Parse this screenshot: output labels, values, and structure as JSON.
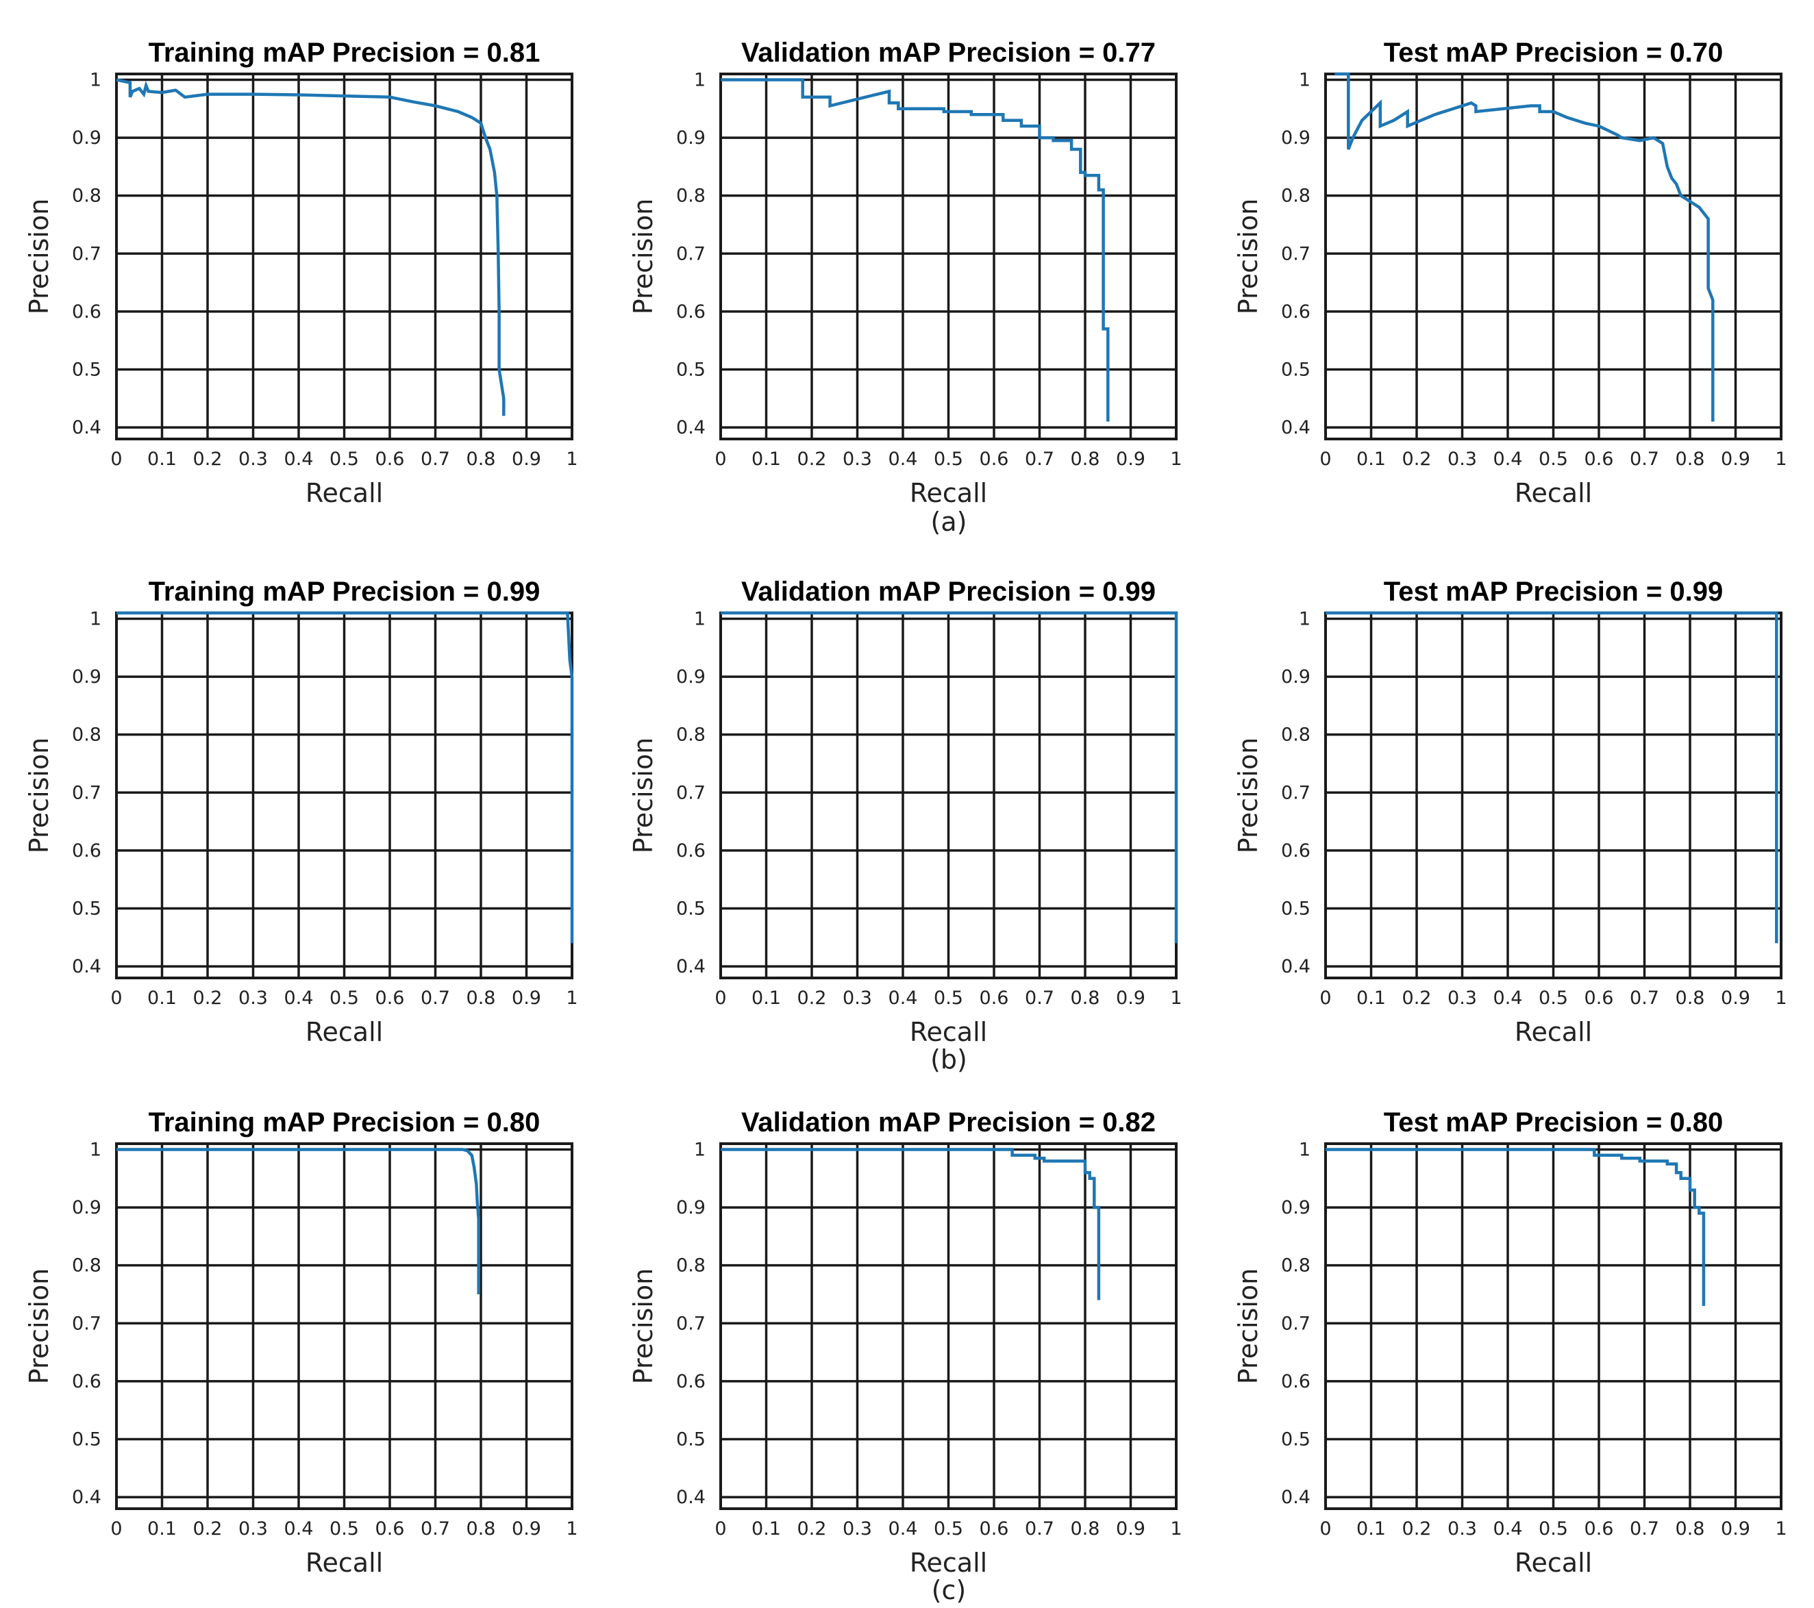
{
  "figure": {
    "captions": [
      "(a)",
      "(b)",
      "(c)"
    ]
  },
  "colors": {
    "curve": "#1f77b4",
    "grid": "#1a1a1a",
    "text": "#222222"
  },
  "chart_data": [
    {
      "type": "line",
      "row": 0,
      "col": 0,
      "title": "Training mAP Precision = 0.81",
      "xlabel": "Recall",
      "ylabel": "Precision",
      "xlim": [
        0,
        1
      ],
      "ylim": [
        0.38,
        1.01
      ],
      "xticks": [
        "0",
        "0.1",
        "0.2",
        "0.3",
        "0.4",
        "0.5",
        "0.6",
        "0.7",
        "0.8",
        "0.9",
        "1"
      ],
      "yticks": [
        "0.4",
        "0.5",
        "0.6",
        "0.7",
        "0.8",
        "0.9",
        "1"
      ],
      "series": [
        {
          "name": "PR curve",
          "x": [
            0,
            0.03,
            0.03,
            0.035,
            0.05,
            0.06,
            0.065,
            0.07,
            0.1,
            0.13,
            0.15,
            0.2,
            0.3,
            0.4,
            0.5,
            0.6,
            0.65,
            0.7,
            0.75,
            0.78,
            0.8,
            0.81,
            0.82,
            0.825,
            0.83,
            0.835,
            0.838,
            0.84,
            0.84,
            0.85,
            0.85
          ],
          "y": [
            1.0,
            0.995,
            0.97,
            0.98,
            0.985,
            0.975,
            0.99,
            0.98,
            0.978,
            0.982,
            0.97,
            0.975,
            0.975,
            0.974,
            0.972,
            0.97,
            0.962,
            0.955,
            0.945,
            0.935,
            0.925,
            0.9,
            0.88,
            0.86,
            0.84,
            0.8,
            0.7,
            0.6,
            0.5,
            0.45,
            0.42
          ]
        }
      ]
    },
    {
      "type": "line",
      "row": 0,
      "col": 1,
      "title": "Validation mAP Precision = 0.77",
      "xlabel": "Recall",
      "ylabel": "Precision",
      "xlim": [
        0,
        1
      ],
      "ylim": [
        0.38,
        1.01
      ],
      "xticks": [
        "0",
        "0.1",
        "0.2",
        "0.3",
        "0.4",
        "0.5",
        "0.6",
        "0.7",
        "0.8",
        "0.9",
        "1"
      ],
      "yticks": [
        "0.4",
        "0.5",
        "0.6",
        "0.7",
        "0.8",
        "0.9",
        "1"
      ],
      "series": [
        {
          "name": "PR curve",
          "x": [
            0,
            0.18,
            0.18,
            0.24,
            0.24,
            0.37,
            0.37,
            0.39,
            0.39,
            0.49,
            0.49,
            0.55,
            0.55,
            0.62,
            0.62,
            0.66,
            0.66,
            0.7,
            0.7,
            0.73,
            0.73,
            0.77,
            0.77,
            0.79,
            0.79,
            0.8,
            0.8,
            0.83,
            0.83,
            0.84,
            0.84,
            0.85,
            0.85
          ],
          "y": [
            1.0,
            1.0,
            0.97,
            0.97,
            0.955,
            0.98,
            0.96,
            0.96,
            0.95,
            0.95,
            0.945,
            0.945,
            0.94,
            0.94,
            0.93,
            0.93,
            0.92,
            0.92,
            0.9,
            0.9,
            0.895,
            0.895,
            0.88,
            0.88,
            0.84,
            0.84,
            0.835,
            0.835,
            0.81,
            0.81,
            0.57,
            0.57,
            0.41
          ]
        }
      ]
    },
    {
      "type": "line",
      "row": 0,
      "col": 2,
      "title": "Test mAP Precision = 0.70",
      "xlabel": "Recall",
      "ylabel": "Precision",
      "xlim": [
        0,
        1
      ],
      "ylim": [
        0.38,
        1.01
      ],
      "xticks": [
        "0",
        "0.1",
        "0.2",
        "0.3",
        "0.4",
        "0.5",
        "0.6",
        "0.7",
        "0.8",
        "0.9",
        "1"
      ],
      "yticks": [
        "0.4",
        "0.5",
        "0.6",
        "0.7",
        "0.8",
        "0.9",
        "1"
      ],
      "series": [
        {
          "name": "PR curve",
          "x": [
            0.02,
            0.05,
            0.05,
            0.06,
            0.08,
            0.12,
            0.12,
            0.15,
            0.18,
            0.18,
            0.24,
            0.32,
            0.33,
            0.33,
            0.45,
            0.47,
            0.47,
            0.5,
            0.53,
            0.57,
            0.6,
            0.64,
            0.65,
            0.69,
            0.72,
            0.74,
            0.75,
            0.76,
            0.77,
            0.78,
            0.79,
            0.8,
            0.82,
            0.83,
            0.84,
            0.84,
            0.85,
            0.85
          ],
          "y": [
            1.01,
            1.01,
            0.88,
            0.9,
            0.93,
            0.96,
            0.92,
            0.93,
            0.945,
            0.92,
            0.94,
            0.96,
            0.955,
            0.945,
            0.955,
            0.955,
            0.945,
            0.945,
            0.935,
            0.925,
            0.92,
            0.905,
            0.9,
            0.895,
            0.9,
            0.89,
            0.85,
            0.83,
            0.82,
            0.8,
            0.795,
            0.79,
            0.78,
            0.77,
            0.76,
            0.64,
            0.62,
            0.41
          ]
        }
      ]
    },
    {
      "type": "line",
      "row": 1,
      "col": 0,
      "title": "Training mAP Precision = 0.99",
      "xlabel": "Recall",
      "ylabel": "Precision",
      "xlim": [
        0,
        1
      ],
      "ylim": [
        0.38,
        1.01
      ],
      "xticks": [
        "0",
        "0.1",
        "0.2",
        "0.3",
        "0.4",
        "0.5",
        "0.6",
        "0.7",
        "0.8",
        "0.9",
        "1"
      ],
      "yticks": [
        "0.4",
        "0.5",
        "0.6",
        "0.7",
        "0.8",
        "0.9",
        "1"
      ],
      "series": [
        {
          "name": "PR curve",
          "x": [
            0,
            0.99,
            0.995,
            1.0,
            1.0
          ],
          "y": [
            1.01,
            1.01,
            0.93,
            0.9,
            0.44
          ]
        }
      ]
    },
    {
      "type": "line",
      "row": 1,
      "col": 1,
      "title": "Validation mAP Precision = 0.99",
      "xlabel": "Recall",
      "ylabel": "Precision",
      "xlim": [
        0,
        1
      ],
      "ylim": [
        0.38,
        1.01
      ],
      "xticks": [
        "0",
        "0.1",
        "0.2",
        "0.3",
        "0.4",
        "0.5",
        "0.6",
        "0.7",
        "0.8",
        "0.9",
        "1"
      ],
      "yticks": [
        "0.4",
        "0.5",
        "0.6",
        "0.7",
        "0.8",
        "0.9",
        "1"
      ],
      "series": [
        {
          "name": "PR curve",
          "x": [
            0,
            1.0,
            1.0
          ],
          "y": [
            1.01,
            1.01,
            0.44
          ]
        }
      ]
    },
    {
      "type": "line",
      "row": 1,
      "col": 2,
      "title": "Test mAP Precision = 0.99",
      "xlabel": "Recall",
      "ylabel": "Precision",
      "xlim": [
        0,
        1
      ],
      "ylim": [
        0.38,
        1.01
      ],
      "xticks": [
        "0",
        "0.1",
        "0.2",
        "0.3",
        "0.4",
        "0.5",
        "0.6",
        "0.7",
        "0.8",
        "0.9",
        "1"
      ],
      "yticks": [
        "0.4",
        "0.5",
        "0.6",
        "0.7",
        "0.8",
        "0.9",
        "1"
      ],
      "series": [
        {
          "name": "PR curve",
          "x": [
            0,
            0.99,
            0.99
          ],
          "y": [
            1.01,
            1.01,
            0.44
          ]
        }
      ]
    },
    {
      "type": "line",
      "row": 2,
      "col": 0,
      "title": "Training mAP Precision = 0.80",
      "xlabel": "Recall",
      "ylabel": "Precision",
      "xlim": [
        0,
        1
      ],
      "ylim": [
        0.38,
        1.01
      ],
      "xticks": [
        "0",
        "0.1",
        "0.2",
        "0.3",
        "0.4",
        "0.5",
        "0.6",
        "0.7",
        "0.8",
        "0.9",
        "1"
      ],
      "yticks": [
        "0.4",
        "0.5",
        "0.6",
        "0.7",
        "0.8",
        "0.9",
        "1"
      ],
      "series": [
        {
          "name": "PR curve",
          "x": [
            0,
            0.76,
            0.77,
            0.78,
            0.785,
            0.79,
            0.792,
            0.795,
            0.795
          ],
          "y": [
            1.0,
            1.0,
            0.998,
            0.99,
            0.97,
            0.94,
            0.91,
            0.88,
            0.75
          ]
        }
      ]
    },
    {
      "type": "line",
      "row": 2,
      "col": 1,
      "title": "Validation mAP Precision = 0.82",
      "xlabel": "Recall",
      "ylabel": "Precision",
      "xlim": [
        0,
        1
      ],
      "ylim": [
        0.38,
        1.01
      ],
      "xticks": [
        "0",
        "0.1",
        "0.2",
        "0.3",
        "0.4",
        "0.5",
        "0.6",
        "0.7",
        "0.8",
        "0.9",
        "1"
      ],
      "yticks": [
        "0.4",
        "0.5",
        "0.6",
        "0.7",
        "0.8",
        "0.9",
        "1"
      ],
      "series": [
        {
          "name": "PR curve",
          "x": [
            0,
            0.64,
            0.64,
            0.69,
            0.69,
            0.71,
            0.71,
            0.8,
            0.8,
            0.81,
            0.81,
            0.82,
            0.82,
            0.83,
            0.83
          ],
          "y": [
            1.0,
            1.0,
            0.99,
            0.99,
            0.985,
            0.985,
            0.98,
            0.98,
            0.96,
            0.96,
            0.95,
            0.95,
            0.9,
            0.9,
            0.74
          ]
        }
      ]
    },
    {
      "type": "line",
      "row": 2,
      "col": 2,
      "title": "Test mAP Precision = 0.80",
      "xlabel": "Recall",
      "ylabel": "Precision",
      "xlim": [
        0,
        1
      ],
      "ylim": [
        0.38,
        1.01
      ],
      "xticks": [
        "0",
        "0.1",
        "0.2",
        "0.3",
        "0.4",
        "0.5",
        "0.6",
        "0.7",
        "0.8",
        "0.9",
        "1"
      ],
      "yticks": [
        "0.4",
        "0.5",
        "0.6",
        "0.7",
        "0.8",
        "0.9",
        "1"
      ],
      "series": [
        {
          "name": "PR curve",
          "x": [
            0,
            0.59,
            0.59,
            0.65,
            0.65,
            0.69,
            0.69,
            0.75,
            0.75,
            0.77,
            0.77,
            0.78,
            0.78,
            0.8,
            0.8,
            0.81,
            0.81,
            0.82,
            0.82,
            0.83,
            0.83
          ],
          "y": [
            1.0,
            1.0,
            0.99,
            0.99,
            0.985,
            0.985,
            0.98,
            0.98,
            0.975,
            0.975,
            0.96,
            0.96,
            0.95,
            0.95,
            0.93,
            0.93,
            0.9,
            0.9,
            0.89,
            0.89,
            0.73
          ]
        }
      ]
    }
  ]
}
